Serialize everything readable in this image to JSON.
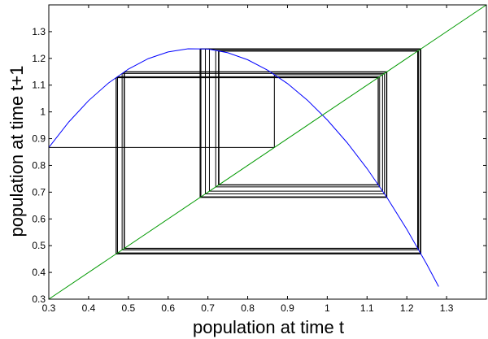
{
  "chart_data": {
    "type": "line",
    "title": "",
    "xlabel": "population at time  t",
    "ylabel": "population at time  t+1",
    "xlim": [
      0.3,
      1.4
    ],
    "ylim": [
      0.3,
      1.4
    ],
    "xticks": [
      0.3,
      0.4,
      0.5,
      0.6,
      0.7,
      0.8,
      0.9,
      1,
      1.1,
      1.2,
      1.3
    ],
    "yticks": [
      0.3,
      0.4,
      0.5,
      0.6,
      0.7,
      0.8,
      0.9,
      1,
      1.1,
      1.2,
      1.3
    ],
    "xtick_labels": [
      "0.3",
      "0.4",
      "0.5",
      "0.6",
      "0.7",
      "0.8",
      "0.9",
      "1",
      "1.1",
      "1.2",
      "1.3"
    ],
    "ytick_labels": [
      "0.3",
      "0.4",
      "0.5",
      "0.6",
      "0.7",
      "0.8",
      "0.9",
      "1",
      "1.1",
      "1.2",
      "1.3"
    ],
    "grid": false,
    "legend": "none",
    "series": [
      {
        "kind": "curve",
        "color": "#0000ff",
        "x": [
          0.3,
          0.35,
          0.4,
          0.45,
          0.5,
          0.55,
          0.6,
          0.65,
          0.7,
          0.75,
          0.8,
          0.85,
          0.9,
          0.95,
          1.0,
          1.05,
          1.1,
          1.15,
          1.2,
          1.25,
          1.28
        ],
        "y": [
          0.867,
          0.962,
          1.042,
          1.108,
          1.16,
          1.199,
          1.224,
          1.236,
          1.235,
          1.221,
          1.195,
          1.156,
          1.106,
          1.044,
          0.97,
          0.885,
          0.788,
          0.68,
          0.561,
          0.431,
          0.347
        ]
      },
      {
        "kind": "diagonal",
        "color": "#009900",
        "x": [
          0.3,
          1.4
        ],
        "y": [
          0.3,
          1.4
        ]
      },
      {
        "kind": "cobweb",
        "color": "#000000",
        "x0": 0.3,
        "iterations": 28
      }
    ]
  }
}
